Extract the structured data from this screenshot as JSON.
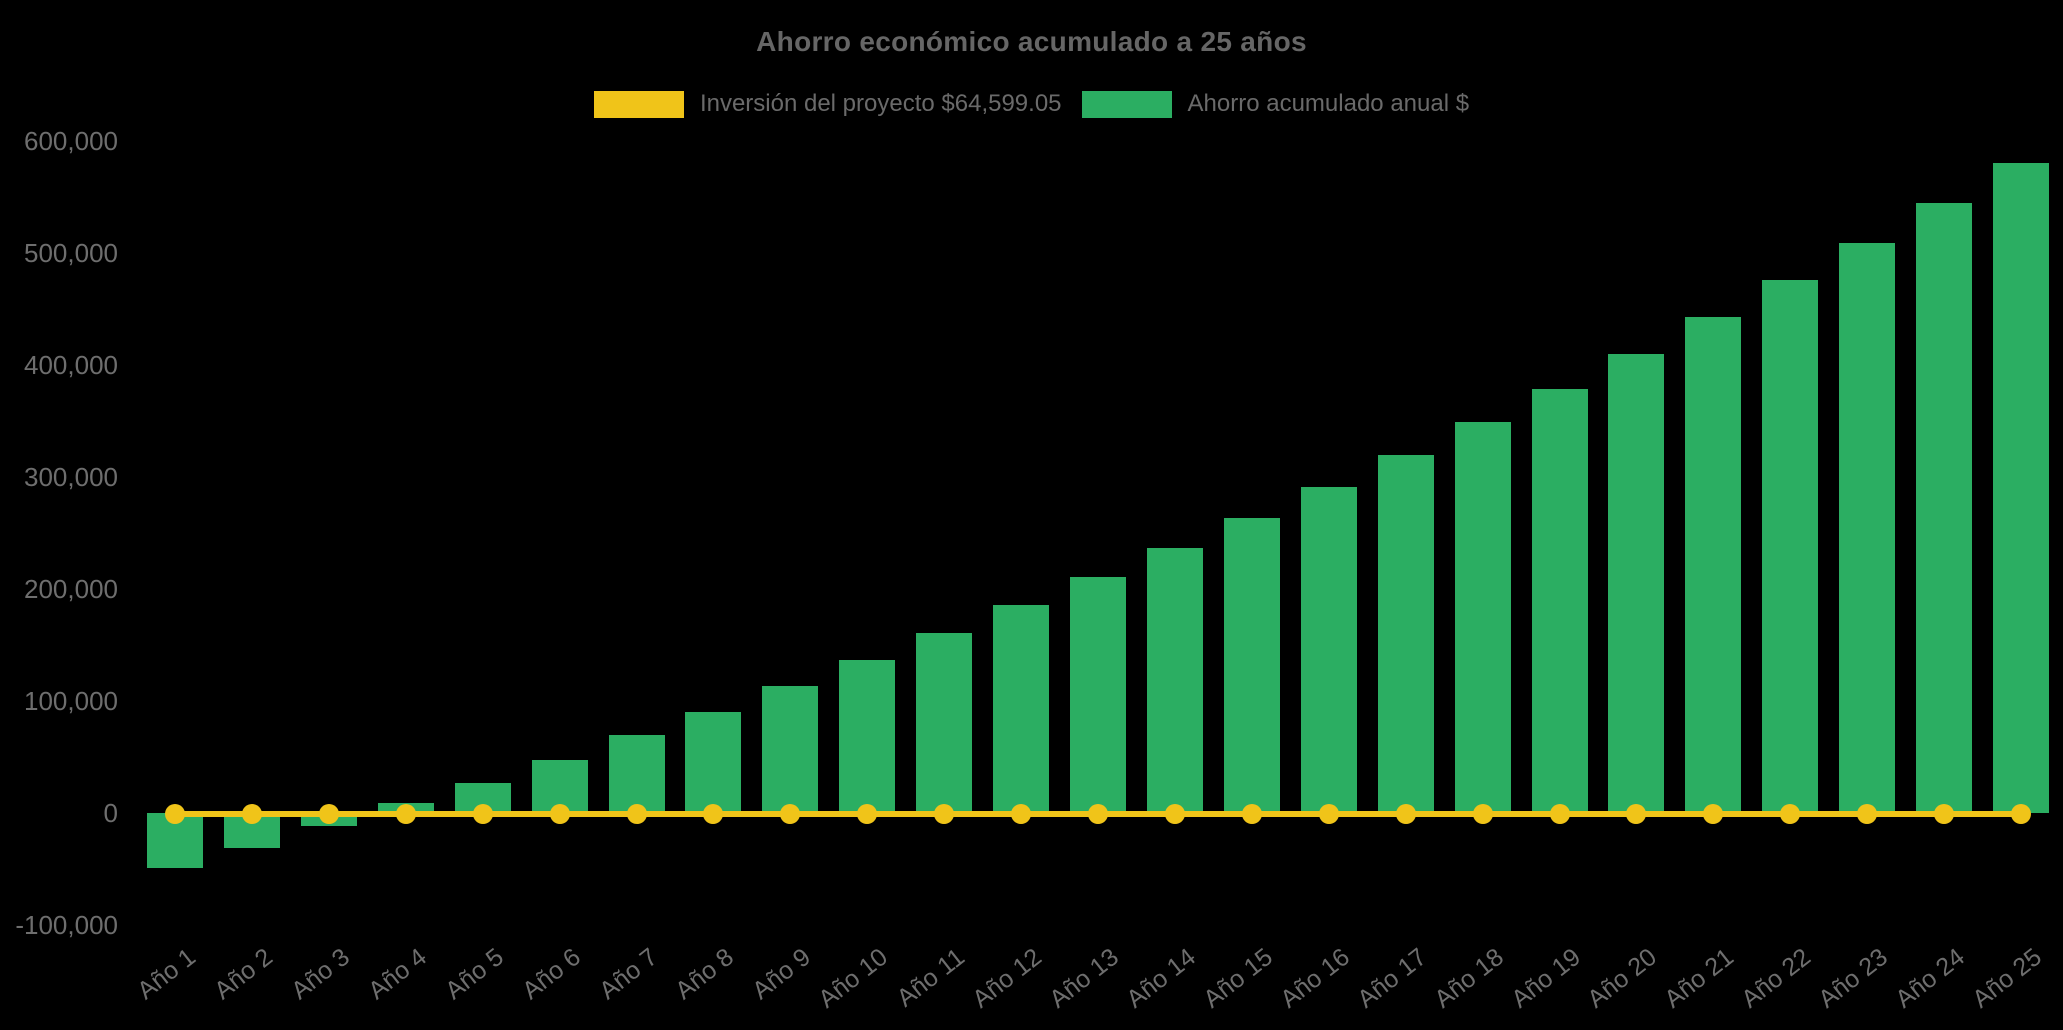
{
  "title": "Ahorro económico acumulado a 25 años",
  "legend": [
    {
      "label": "Inversión del proyecto $64,599.05",
      "color": "#F0C419"
    },
    {
      "label": "Ahorro acumulado anual $",
      "color": "#2BAE62"
    }
  ],
  "colors": {
    "background": "#000000",
    "bar_green": "#2BAE62",
    "line_yellow": "#F0C419",
    "title_text": "#666666",
    "axis_text": "#6e6e6e"
  },
  "chart_data": {
    "type": "bar",
    "title": "Ahorro económico acumulado a 25 años",
    "categories": [
      "Año 1",
      "Año 2",
      "Año 3",
      "Año 4",
      "Año 5",
      "Año 6",
      "Año 7",
      "Año 8",
      "Año 9",
      "Año 10",
      "Año 11",
      "Año 12",
      "Año 13",
      "Año 14",
      "Año 15",
      "Año 16",
      "Año 17",
      "Año 18",
      "Año 19",
      "Año 20",
      "Año 21",
      "Año 22",
      "Año 23",
      "Año 24",
      "Año 25"
    ],
    "series": [
      {
        "name": "Ahorro acumulado anual $",
        "type": "bar",
        "color": "#2BAE62",
        "values": [
          -49000,
          -31500,
          -11500,
          8500,
          27000,
          47500,
          69500,
          90500,
          113500,
          136500,
          160500,
          185500,
          211000,
          237000,
          263500,
          291000,
          319500,
          349000,
          378500,
          409500,
          442500,
          476000,
          509000,
          544500,
          580500
        ]
      },
      {
        "name": "Inversión del proyecto $64,599.05",
        "type": "line",
        "color": "#F0C419",
        "investment_amount_label": "$64,599.05",
        "values": [
          0,
          0,
          0,
          0,
          0,
          0,
          0,
          0,
          0,
          0,
          0,
          0,
          0,
          0,
          0,
          0,
          0,
          0,
          0,
          0,
          0,
          0,
          0,
          0,
          0
        ]
      }
    ],
    "xlabel": "",
    "ylabel": "",
    "ylim": [
      -100000,
      620000
    ],
    "yticks": [
      600000,
      500000,
      400000,
      300000,
      200000,
      100000,
      0,
      -100000
    ],
    "ytick_labels": [
      "600,000",
      "500,000",
      "400,000",
      "300,000",
      "200,000",
      "100,000",
      "0",
      "-100,000"
    ],
    "grid": false,
    "legend_position": "top",
    "background": "#000000"
  }
}
